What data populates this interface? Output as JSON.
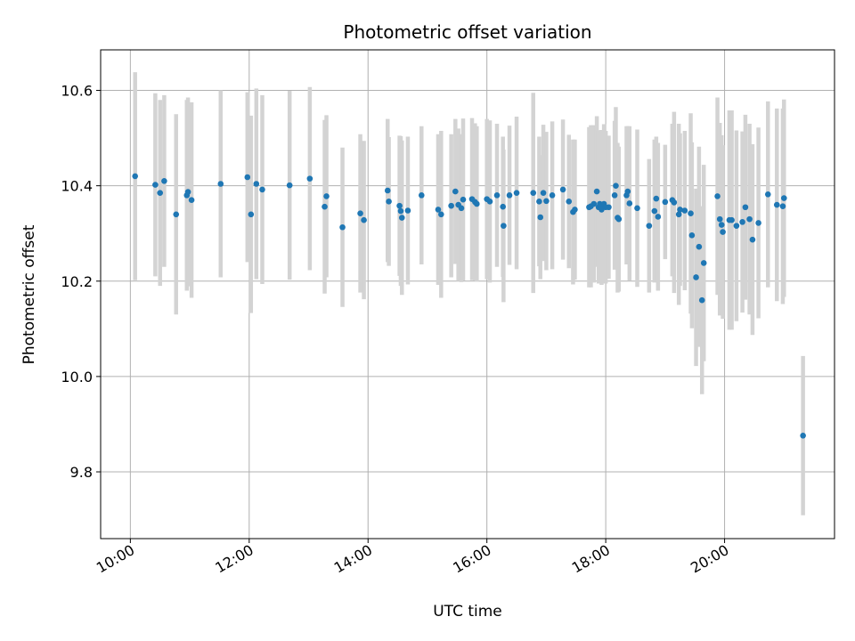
{
  "chart_data": {
    "type": "scatter",
    "title": "Photometric offset variation",
    "xlabel": "UTC time",
    "ylabel": "Photometric offset",
    "x_unit": "hours",
    "xlim": [
      9.5,
      21.85
    ],
    "ylim": [
      9.66,
      10.685
    ],
    "x_ticks": [
      {
        "value": 10,
        "label": "10:00"
      },
      {
        "value": 12,
        "label": "12:00"
      },
      {
        "value": 14,
        "label": "14:00"
      },
      {
        "value": 16,
        "label": "16:00"
      },
      {
        "value": 18,
        "label": "18:00"
      },
      {
        "value": 20,
        "label": "20:00"
      }
    ],
    "y_ticks": [
      {
        "value": 9.8,
        "label": "9.8"
      },
      {
        "value": 10.0,
        "label": "10.0"
      },
      {
        "value": 10.2,
        "label": "10.2"
      },
      {
        "value": 10.4,
        "label": "10.4"
      },
      {
        "value": 10.6,
        "label": "10.6"
      }
    ],
    "grid": true,
    "colors": {
      "point": "#1f77b4",
      "errorbar": "#d3d3d3",
      "grid": "#b0b0b0"
    },
    "series": [
      {
        "x": [
          10.08,
          10.42,
          10.5,
          10.57,
          10.77,
          10.95,
          10.97,
          11.03,
          11.52,
          11.97,
          12.03,
          12.12,
          12.22,
          12.68,
          13.02,
          13.27,
          13.3,
          13.57,
          13.87,
          13.93,
          14.33,
          14.35,
          14.53,
          14.55,
          14.57,
          14.67,
          14.9,
          15.18,
          15.23,
          15.4,
          15.47,
          15.52,
          15.57,
          15.6,
          15.75,
          15.8,
          15.83,
          16.0,
          16.05,
          16.17,
          16.27,
          16.28,
          16.38,
          16.5,
          16.78,
          16.88,
          16.9,
          16.95,
          17.0,
          17.1,
          17.28,
          17.38,
          17.45,
          17.48,
          17.72,
          17.75,
          17.8,
          17.85,
          17.88,
          17.9,
          17.92,
          17.93,
          17.97,
          18.0,
          18.05,
          18.15,
          18.17,
          18.2,
          18.22,
          18.35,
          18.37,
          18.4,
          18.53,
          18.73,
          18.82,
          18.85,
          18.88,
          19.0,
          19.12,
          19.15,
          19.23,
          19.25,
          19.33,
          19.43,
          19.45,
          19.52,
          19.57,
          19.62,
          19.65,
          19.88,
          19.92,
          19.95,
          19.97,
          20.08,
          20.12,
          20.2,
          20.3,
          20.35,
          20.42,
          20.47,
          20.57,
          20.73,
          20.88,
          20.98,
          21.0,
          21.32
        ],
        "y": [
          10.42,
          10.402,
          10.385,
          10.41,
          10.34,
          10.38,
          10.387,
          10.37,
          10.404,
          10.418,
          10.34,
          10.404,
          10.392,
          10.401,
          10.415,
          10.356,
          10.378,
          10.313,
          10.342,
          10.328,
          10.39,
          10.367,
          10.358,
          10.347,
          10.333,
          10.348,
          10.38,
          10.35,
          10.34,
          10.358,
          10.388,
          10.36,
          10.353,
          10.371,
          10.372,
          10.366,
          10.362,
          10.372,
          10.367,
          10.38,
          10.356,
          10.316,
          10.38,
          10.385,
          10.385,
          10.367,
          10.334,
          10.385,
          10.368,
          10.38,
          10.392,
          10.367,
          10.345,
          10.35,
          10.355,
          10.357,
          10.362,
          10.388,
          10.355,
          10.362,
          10.357,
          10.35,
          10.362,
          10.355,
          10.355,
          10.38,
          10.4,
          10.333,
          10.33,
          10.38,
          10.388,
          10.363,
          10.353,
          10.316,
          10.347,
          10.373,
          10.335,
          10.366,
          10.37,
          10.365,
          10.34,
          10.35,
          10.348,
          10.342,
          10.296,
          10.208,
          10.272,
          10.16,
          10.238,
          10.378,
          10.33,
          10.318,
          10.303,
          10.328,
          10.328,
          10.316,
          10.324,
          10.355,
          10.33,
          10.287,
          10.322,
          10.382,
          10.36,
          10.357,
          10.374,
          9.876
        ],
        "err": [
          0.218,
          0.192,
          0.195,
          0.18,
          0.21,
          0.2,
          0.198,
          0.205,
          0.196,
          0.178,
          0.207,
          0.2,
          0.198,
          0.198,
          0.192,
          0.182,
          0.17,
          0.167,
          0.166,
          0.166,
          0.15,
          0.135,
          0.147,
          0.157,
          0.162,
          0.155,
          0.145,
          0.158,
          0.175,
          0.15,
          0.152,
          0.16,
          0.155,
          0.17,
          0.17,
          0.165,
          0.163,
          0.168,
          0.17,
          0.15,
          0.147,
          0.16,
          0.146,
          0.16,
          0.21,
          0.136,
          0.13,
          0.143,
          0.145,
          0.155,
          0.147,
          0.14,
          0.152,
          0.147,
          0.168,
          0.17,
          0.165,
          0.158,
          0.16,
          0.148,
          0.16,
          0.158,
          0.167,
          0.16,
          0.15,
          0.156,
          0.165,
          0.157,
          0.152,
          0.145,
          0.137,
          0.162,
          0.165,
          0.14,
          0.15,
          0.13,
          0.155,
          0.12,
          0.16,
          0.19,
          0.19,
          0.16,
          0.167,
          0.21,
          0.195,
          0.186,
          0.21,
          0.197,
          0.206,
          0.207,
          0.202,
          0.188,
          0.182,
          0.23,
          0.23,
          0.2,
          0.19,
          0.194,
          0.2,
          0.2,
          0.2,
          0.195,
          0.202,
          0.205,
          0.207,
          0.167
        ]
      }
    ]
  }
}
